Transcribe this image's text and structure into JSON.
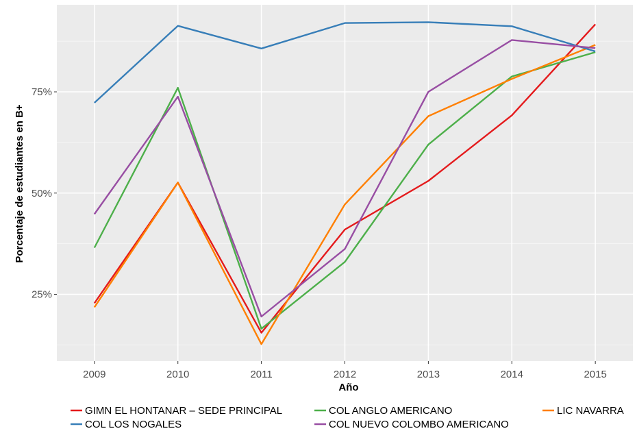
{
  "chart_data": {
    "type": "line",
    "xlabel": "Año",
    "ylabel": "Porcentaje de estudiantes en B+",
    "x": [
      2009,
      2010,
      2011,
      2012,
      2013,
      2014,
      2015
    ],
    "xlim": [
      2008.55,
      2015.45
    ],
    "ylim": [
      8.5,
      96.5
    ],
    "yticks": [
      25,
      50,
      75
    ],
    "ytick_labels": [
      "25%",
      "50%",
      "75%"
    ],
    "grid": true,
    "legend_position": "bottom",
    "series": [
      {
        "name": "GIMN EL HONTANAR – SEDE PRINCIPAL",
        "color": "#e41a1c",
        "values": [
          22.8,
          52.6,
          15.5,
          41.0,
          53.0,
          69.2,
          91.7
        ]
      },
      {
        "name": "COL ANGLO AMERICANO",
        "color": "#4daf4a",
        "values": [
          36.5,
          76.0,
          16.5,
          33.0,
          62.0,
          78.8,
          84.8
        ]
      },
      {
        "name": "LIC NAVARRA",
        "color": "#ff7f00",
        "values": [
          21.8,
          52.6,
          12.7,
          47.2,
          69.0,
          78.2,
          86.6
        ]
      },
      {
        "name": "COL LOS NOGALES",
        "color": "#377eb8",
        "values": [
          72.3,
          91.3,
          85.7,
          92.0,
          92.2,
          91.2,
          85.0
        ]
      },
      {
        "name": "COL NUEVO COLOMBO AMERICANO",
        "color": "#984ea3",
        "values": [
          44.8,
          73.8,
          19.5,
          36.2,
          75.0,
          87.8,
          85.8
        ]
      }
    ]
  }
}
